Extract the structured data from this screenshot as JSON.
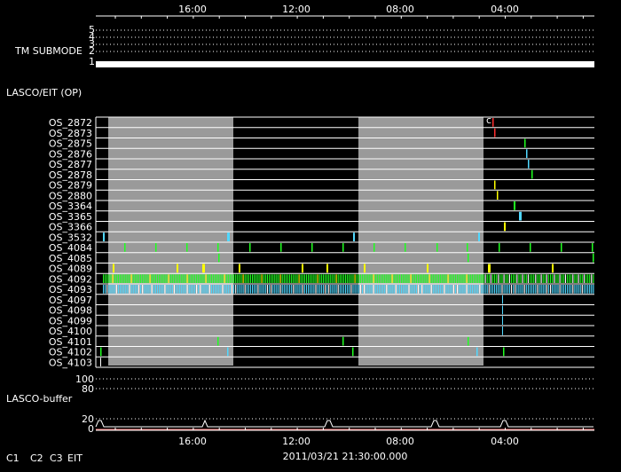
{
  "top_axis": {
    "ticks": [
      "16:00",
      "12:00",
      "08:00",
      "04:00"
    ]
  },
  "bottom_axis": {
    "ticks": [
      "16:00",
      "12:00",
      "08:00",
      "04:00"
    ]
  },
  "timestamp": "2011/03/21 21:30:00.000",
  "tm_submode": {
    "label": "TM SUBMODE",
    "levels": [
      "5",
      "4",
      "3",
      "2",
      "1"
    ]
  },
  "lasco_eit": {
    "label": "LASCO/EIT (OP)",
    "marker": "c",
    "rows": [
      "OS_2872",
      "OS_2873",
      "OS_2875",
      "OS_2876",
      "OS_2877",
      "OS_2878",
      "OS_2879",
      "OS_2880",
      "OS_3364",
      "OS_3365",
      "OS_3366",
      "OS_3532",
      "OS_4084",
      "OS_4085",
      "OS_4089",
      "OS_4092",
      "OS_4093",
      "OS_4097",
      "OS_4098",
      "OS_4099",
      "OS_4100",
      "OS_4101",
      "OS_4102",
      "OS_4103"
    ]
  },
  "lasco_buffer": {
    "label": "LASCO-buffer",
    "ticks": [
      "100",
      "80",
      "20",
      "0"
    ]
  },
  "legend": [
    {
      "label": "C1",
      "color": "#ff3030"
    },
    {
      "label": "C2",
      "color": "#30ff30"
    },
    {
      "label": "C3",
      "color": "#60e0ff"
    },
    {
      "label": "EIT",
      "color": "#ffffff"
    }
  ],
  "colors": {
    "background": "#000000",
    "shade": "#9a9a9a",
    "c1": "#ff3030",
    "c2": "#20ff20",
    "c3": "#50d8ff",
    "eit": "#ffffff",
    "yellow": "#ffff00"
  }
}
